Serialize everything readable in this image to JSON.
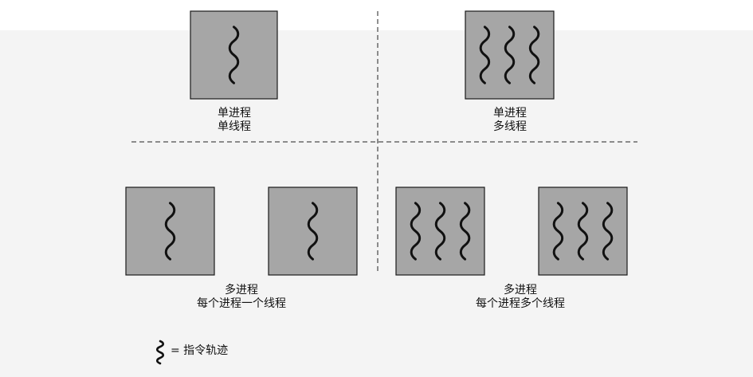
{
  "quadrants": [
    {
      "id": "top-left",
      "lines": [
        "单进程",
        "单线程"
      ],
      "processes": [
        {
          "threads": 1
        }
      ]
    },
    {
      "id": "top-right",
      "lines": [
        "单进程",
        "多线程"
      ],
      "processes": [
        {
          "threads": 3
        }
      ]
    },
    {
      "id": "bottom-left",
      "lines": [
        "多进程",
        "每个进程一个线程"
      ],
      "processes": [
        {
          "threads": 1
        },
        {
          "threads": 1
        }
      ]
    },
    {
      "id": "bottom-right",
      "lines": [
        "多进程",
        "每个进程多个线程"
      ],
      "processes": [
        {
          "threads": 3
        },
        {
          "threads": 3
        }
      ]
    }
  ],
  "legend": {
    "text": "= 指令轨迹",
    "icon": "wavy-thread-icon"
  },
  "colors": {
    "process_fill": "#a6a6a6",
    "process_stroke": "#1a1a1a",
    "thread": "#111111",
    "divider": "#222222"
  }
}
